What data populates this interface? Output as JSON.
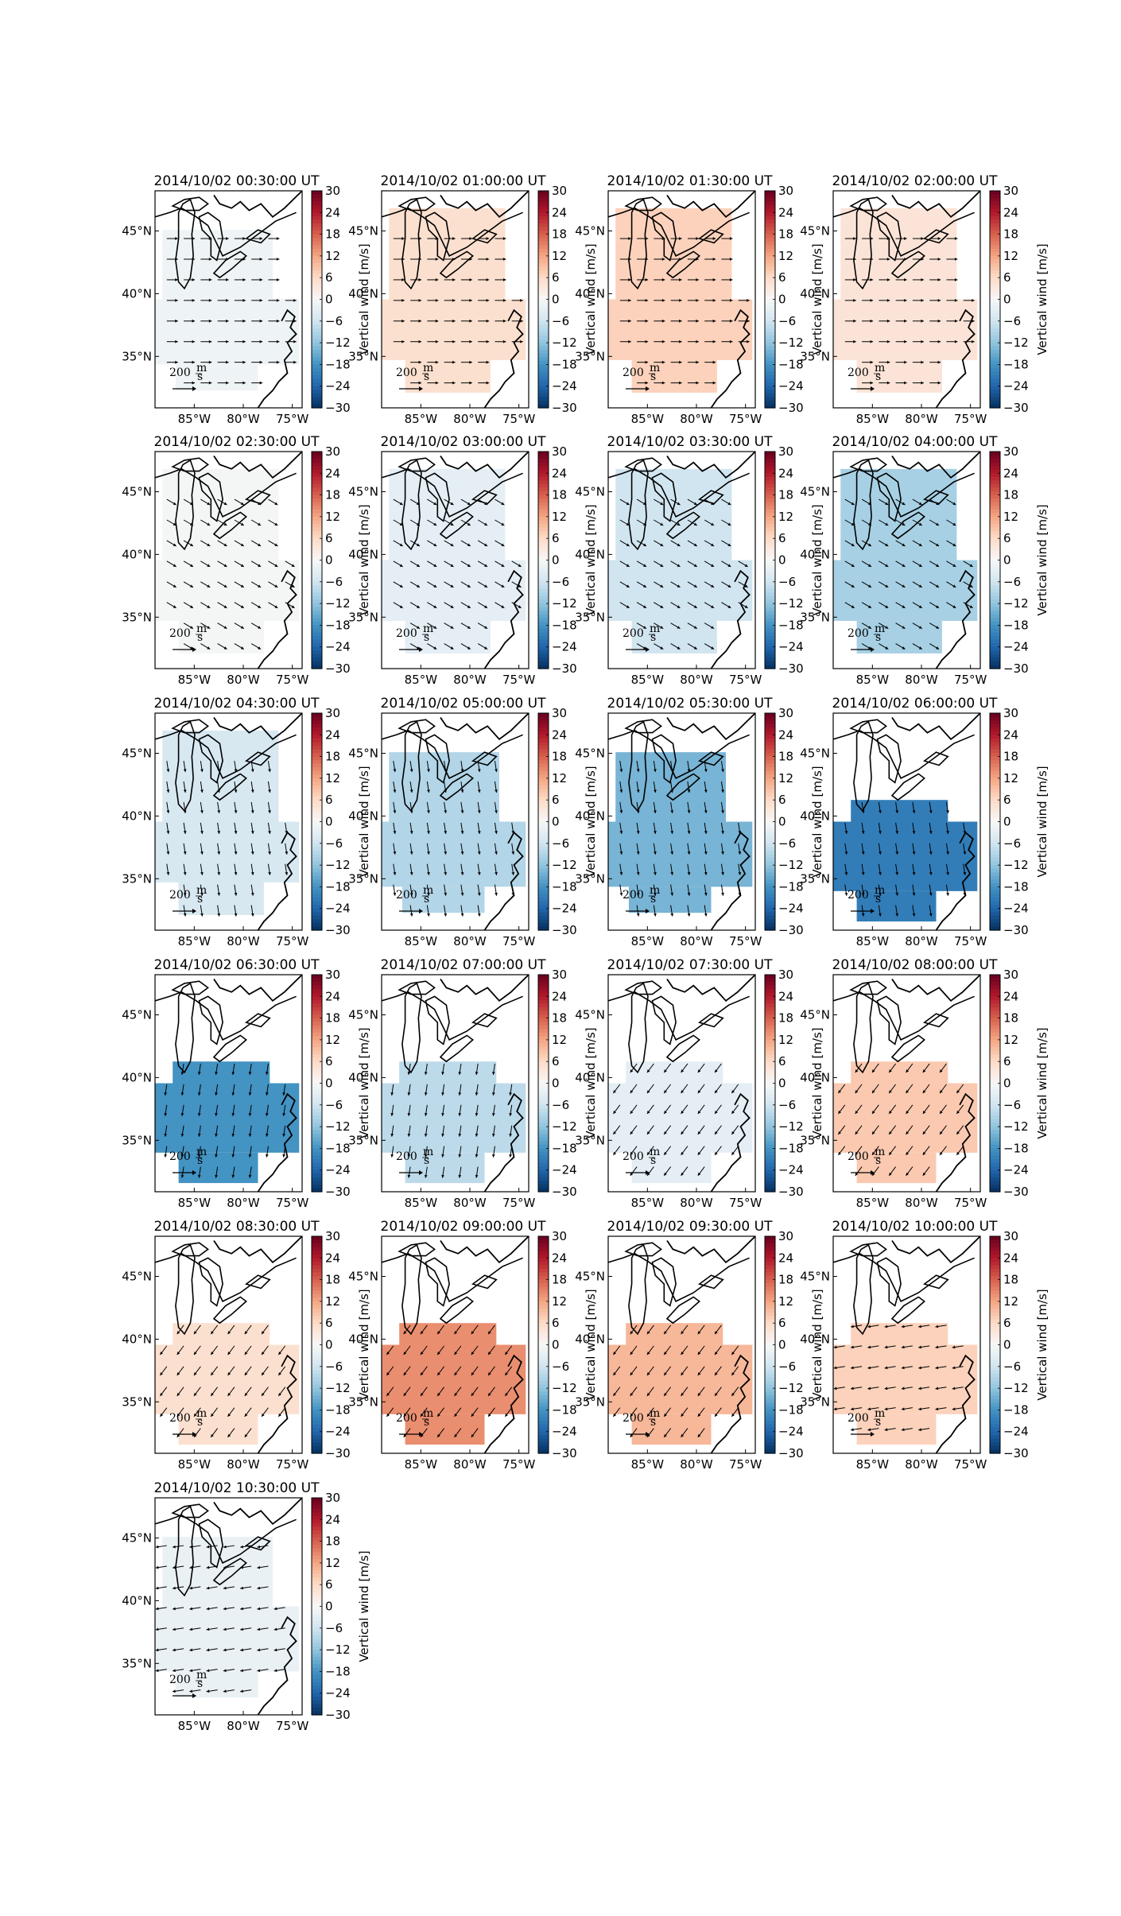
{
  "figure": {
    "colorbar": {
      "label": "Vertical wind [m/s]",
      "ticks": [
        "30",
        "24",
        "18",
        "12",
        "6",
        "0",
        "−6",
        "−12",
        "−18",
        "−24",
        "−30"
      ],
      "range": [
        -30,
        30
      ],
      "colormap": "RdBu_r"
    },
    "lat_ticks": [
      "45°N",
      "40°N",
      "35°N"
    ],
    "lon_ticks": [
      "85°W",
      "80°W",
      "75°W"
    ],
    "scale_label": "200",
    "scale_unit_num": "m",
    "scale_unit_den": "s",
    "panels": [
      {
        "title": "2014/10/02 00:30:00 UT",
        "vertical_wind": -1.5,
        "dir": "east",
        "extent": "mid"
      },
      {
        "title": "2014/10/02 01:00:00 UT",
        "vertical_wind": 5,
        "dir": "east",
        "extent": "full"
      },
      {
        "title": "2014/10/02 01:30:00 UT",
        "vertical_wind": 7,
        "dir": "east",
        "extent": "full"
      },
      {
        "title": "2014/10/02 02:00:00 UT",
        "vertical_wind": 4,
        "dir": "east",
        "extent": "full"
      },
      {
        "title": "2014/10/02 02:30:00 UT",
        "vertical_wind": -0.5,
        "dir": "southeast",
        "extent": "full"
      },
      {
        "title": "2014/10/02 03:00:00 UT",
        "vertical_wind": -3,
        "dir": "southeast",
        "extent": "full"
      },
      {
        "title": "2014/10/02 03:30:00 UT",
        "vertical_wind": -6,
        "dir": "southeast",
        "extent": "full"
      },
      {
        "title": "2014/10/02 04:00:00 UT",
        "vertical_wind": -10,
        "dir": "southeast",
        "extent": "full"
      },
      {
        "title": "2014/10/02 04:30:00 UT",
        "vertical_wind": -5,
        "dir": "south",
        "extent": "full"
      },
      {
        "title": "2014/10/02 05:00:00 UT",
        "vertical_wind": -9,
        "dir": "south",
        "extent": "mid"
      },
      {
        "title": "2014/10/02 05:30:00 UT",
        "vertical_wind": -14,
        "dir": "south",
        "extent": "mid"
      },
      {
        "title": "2014/10/02 06:00:00 UT",
        "vertical_wind": -21,
        "dir": "south",
        "extent": "small"
      },
      {
        "title": "2014/10/02 06:30:00 UT",
        "vertical_wind": -18,
        "dir": "southsw",
        "extent": "small"
      },
      {
        "title": "2014/10/02 07:00:00 UT",
        "vertical_wind": -8,
        "dir": "southsw",
        "extent": "small"
      },
      {
        "title": "2014/10/02 07:30:00 UT",
        "vertical_wind": -3,
        "dir": "southwest",
        "extent": "small"
      },
      {
        "title": "2014/10/02 08:00:00 UT",
        "vertical_wind": 8,
        "dir": "southwest",
        "extent": "small"
      },
      {
        "title": "2014/10/02 08:30:00 UT",
        "vertical_wind": 5,
        "dir": "southwest",
        "extent": "small"
      },
      {
        "title": "2014/10/02 09:00:00 UT",
        "vertical_wind": 14,
        "dir": "southwest",
        "extent": "small"
      },
      {
        "title": "2014/10/02 09:30:00 UT",
        "vertical_wind": 10,
        "dir": "southwest",
        "extent": "small"
      },
      {
        "title": "2014/10/02 10:00:00 UT",
        "vertical_wind": 7,
        "dir": "west",
        "extent": "small"
      },
      {
        "title": "2014/10/02 10:30:00 UT",
        "vertical_wind": -2,
        "dir": "west",
        "extent": "mid"
      }
    ]
  }
}
